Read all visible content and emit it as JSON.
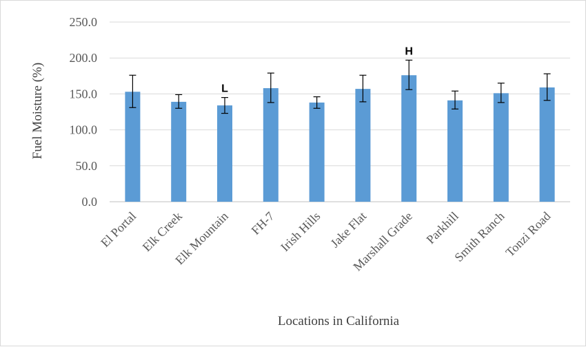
{
  "chart_data": {
    "type": "bar",
    "xlabel": "Locations in California",
    "ylabel": "Fuel Moisture (%)",
    "ylim": [
      0,
      250
    ],
    "yticks": [
      "0.0",
      "50.0",
      "100.0",
      "150.0",
      "200.0",
      "250.0"
    ],
    "grid": true,
    "legend": "none",
    "bar_color": "#5b9bd5",
    "categories": [
      "El Portal",
      "Elk Creek",
      "Elk Mountain",
      "FH-7",
      "Irish Hills",
      "Jake Flat",
      "Marshall Grade",
      "Parkhill",
      "Smith Ranch",
      "Tonzi Road"
    ],
    "values": [
      153,
      139,
      134,
      158,
      138,
      157,
      176,
      141,
      151,
      159
    ],
    "error_low": [
      22,
      9,
      11,
      20,
      8,
      18,
      20,
      12,
      13,
      18
    ],
    "error_high": [
      23,
      10,
      11,
      21,
      8,
      19,
      21,
      13,
      14,
      19
    ],
    "annotations": [
      {
        "category": "Elk Mountain",
        "text": "L"
      },
      {
        "category": "Marshall Grade",
        "text": "H"
      }
    ]
  }
}
